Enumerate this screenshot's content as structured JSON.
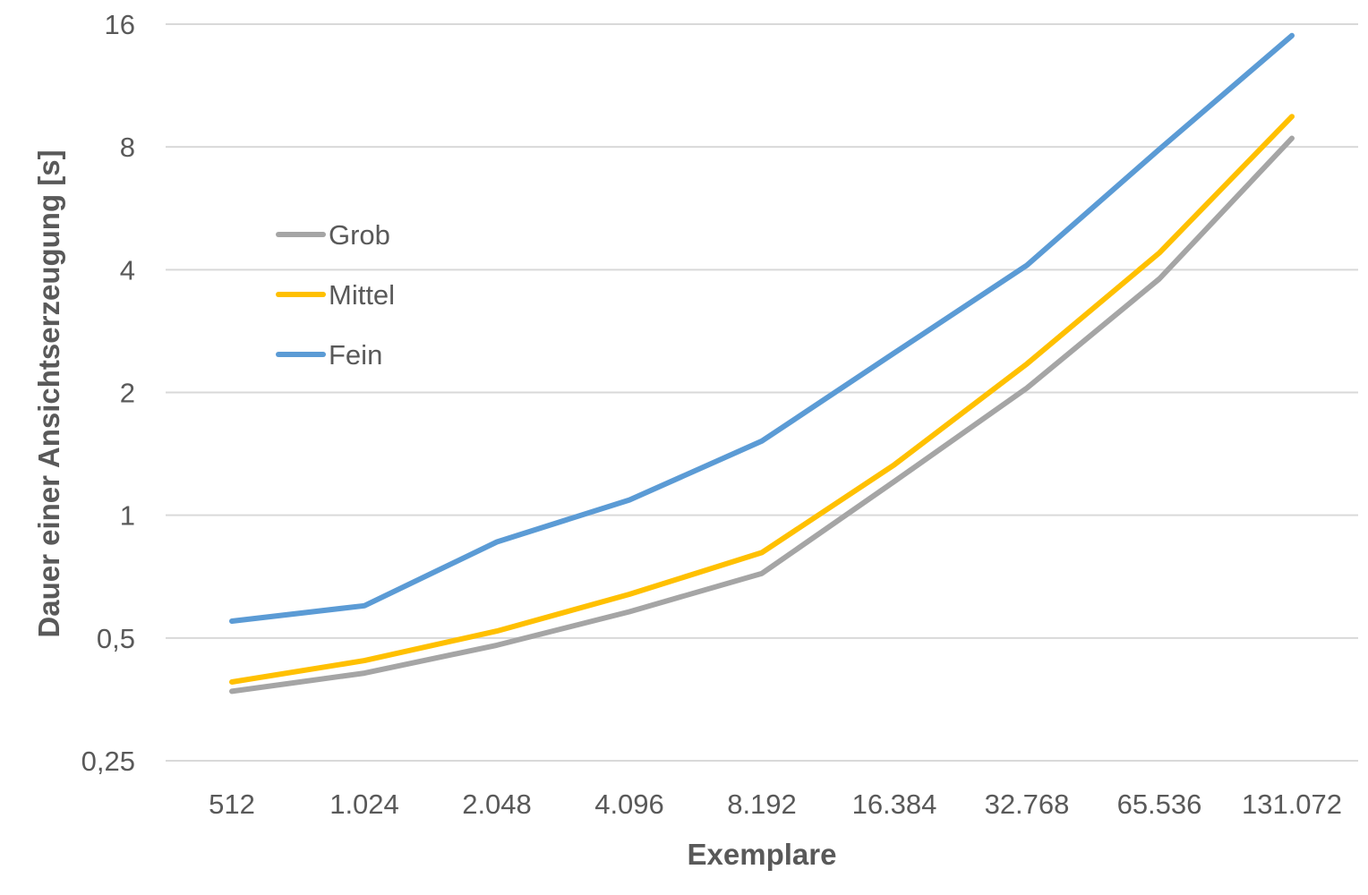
{
  "chart_data": {
    "type": "line",
    "xlabel": "Exemplare",
    "ylabel": "Dauer einer Ansichtserzeugung [s]",
    "y_scale": "log2",
    "ylim": [
      0.25,
      16
    ],
    "yticks": [
      0.25,
      0.5,
      1,
      2,
      4,
      8,
      16
    ],
    "ytick_labels": [
      "0,25",
      "0,5",
      "1",
      "2",
      "4",
      "8",
      "16"
    ],
    "categories": [
      "512",
      "1.024",
      "2.048",
      "4.096",
      "8.192",
      "16.384",
      "32.768",
      "65.536",
      "131.072"
    ],
    "grid": true,
    "legend_position": "upper-left",
    "series": [
      {
        "name": "Grob",
        "color": "#a5a5a5",
        "values": [
          0.37,
          0.41,
          0.48,
          0.58,
          0.72,
          1.21,
          2.05,
          3.8,
          8.4
        ]
      },
      {
        "name": "Mittel",
        "color": "#ffc000",
        "values": [
          0.39,
          0.44,
          0.52,
          0.64,
          0.81,
          1.33,
          2.35,
          4.4,
          9.5
        ]
      },
      {
        "name": "Fein",
        "color": "#5b9bd5",
        "values": [
          0.55,
          0.6,
          0.86,
          1.09,
          1.52,
          2.5,
          4.1,
          7.9,
          15.0
        ]
      }
    ]
  }
}
